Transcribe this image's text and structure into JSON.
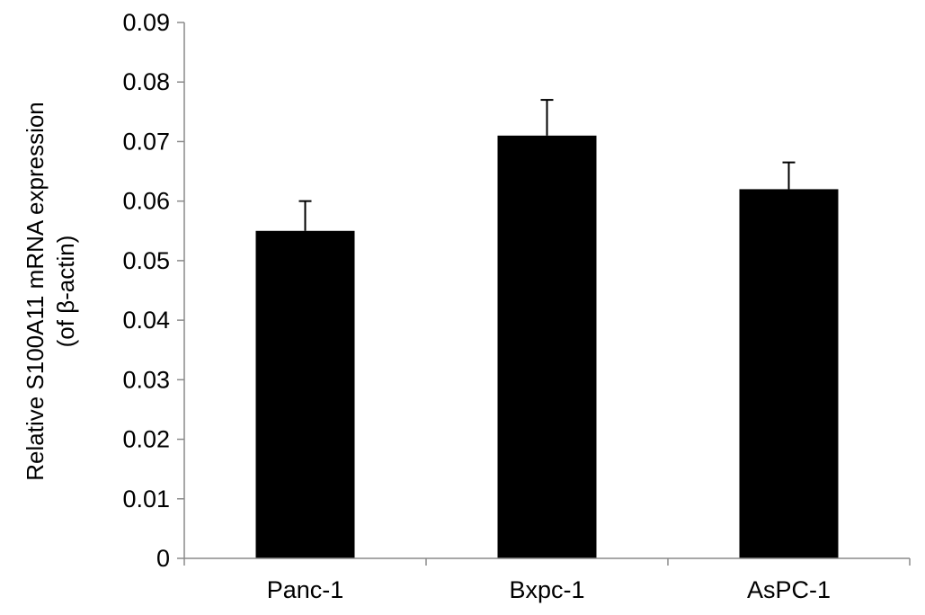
{
  "chart_data": {
    "type": "bar",
    "title": "",
    "xlabel": "",
    "ylabel_lines": [
      "Relative S100A11 mRNA expression",
      "(of β-actin)"
    ],
    "categories": [
      "Panc-1",
      "Bxpc-1",
      "AsPC-1"
    ],
    "values": [
      0.055,
      0.071,
      0.062
    ],
    "errors": [
      0.005,
      0.006,
      0.0045
    ],
    "ylim": [
      0,
      0.09
    ],
    "yticks": [
      0,
      0.01,
      0.02,
      0.03,
      0.04,
      0.05,
      0.06,
      0.07,
      0.08,
      0.09
    ],
    "ytick_labels": [
      "0",
      "0.01",
      "0.02",
      "0.03",
      "0.04",
      "0.05",
      "0.06",
      "0.07",
      "0.08",
      "0.09"
    ],
    "grid": false,
    "legend": "none",
    "colors": {
      "bar": "#000000",
      "axis": "#8a8a8a",
      "error_bar": "#000000"
    }
  }
}
